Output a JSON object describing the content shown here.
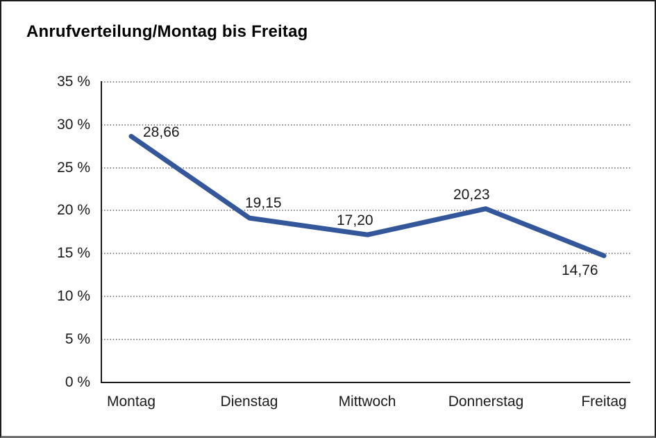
{
  "window": {
    "title": "Anrufverteilung/Montag bis Freitag"
  },
  "chart_data": {
    "type": "line",
    "title": "Anrufverteilung/Montag bis Freitag",
    "categories": [
      "Montag",
      "Dienstag",
      "Mittwoch",
      "Donnerstag",
      "Freitag"
    ],
    "values": [
      28.66,
      19.15,
      17.2,
      20.23,
      14.76
    ],
    "point_labels": [
      "28,66",
      "19,15",
      "17,20",
      "20,23",
      "14,76"
    ],
    "yticks": [
      "35 %",
      "30 %",
      "25 %",
      "20 %",
      "15 %",
      "10 %",
      "5 %",
      "0 %"
    ],
    "xlabel": "",
    "ylabel": "",
    "ylim": [
      0,
      35
    ],
    "ytick_step": 5,
    "grid": "horizontal-dotted",
    "legend": "none",
    "line_color": "#34569b",
    "axis_color": "#1a1a1a",
    "grid_color": "#555555"
  }
}
